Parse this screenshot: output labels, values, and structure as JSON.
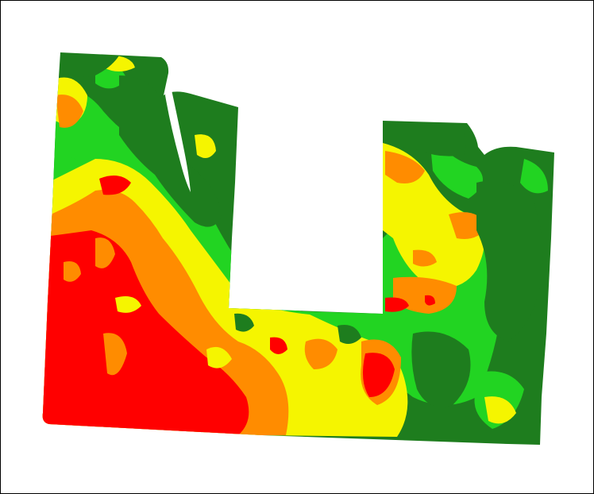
{
  "map": {
    "type": "field-zone-map",
    "zone_colors": {
      "very_high": "#1e7d1e",
      "high": "#22d422",
      "medium": "#f5f500",
      "low": "#ff8c00",
      "very_low": "#ff0000"
    },
    "background": "#ffffff",
    "border": "#000000"
  }
}
